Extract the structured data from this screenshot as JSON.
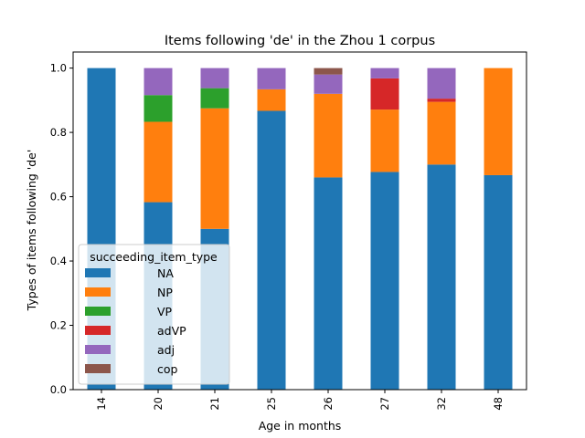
{
  "chart_data": {
    "type": "bar",
    "stacked": true,
    "title": "Items following 'de' in the Zhou 1 corpus",
    "xlabel": "Age in months",
    "ylabel": "Types of items following 'de'",
    "categories": [
      "14",
      "20",
      "21",
      "25",
      "26",
      "27",
      "32",
      "48"
    ],
    "ylim": [
      0,
      1.05
    ],
    "yticks": [
      0.0,
      0.2,
      0.4,
      0.6,
      0.8,
      1.0
    ],
    "ytick_labels": [
      "0.0",
      "0.2",
      "0.4",
      "0.6",
      "0.8",
      "1.0"
    ],
    "grid": false,
    "legend": {
      "title": "succeeding_item_type",
      "placement": "center-left"
    },
    "series": [
      {
        "name": "NA",
        "color": "#1f77b4",
        "values": [
          1.0,
          0.583,
          0.5,
          0.867,
          0.66,
          0.677,
          0.7,
          0.667
        ]
      },
      {
        "name": "NP",
        "color": "#ff7f0e",
        "values": [
          0,
          0.25,
          0.375,
          0.067,
          0.26,
          0.194,
          0.195,
          0.333
        ]
      },
      {
        "name": "VP",
        "color": "#2ca02c",
        "values": [
          0,
          0.083,
          0.0625,
          0,
          0,
          0,
          0,
          0
        ]
      },
      {
        "name": "adVP",
        "color": "#d62728",
        "values": [
          0,
          0,
          0,
          0,
          0,
          0.097,
          0.01,
          0
        ]
      },
      {
        "name": "adj",
        "color": "#9467bd",
        "values": [
          0,
          0.084,
          0.0625,
          0.066,
          0.06,
          0.032,
          0.095,
          0
        ]
      },
      {
        "name": "cop",
        "color": "#8c564b",
        "values": [
          0,
          0,
          0,
          0,
          0.02,
          0,
          0,
          0
        ]
      }
    ]
  }
}
